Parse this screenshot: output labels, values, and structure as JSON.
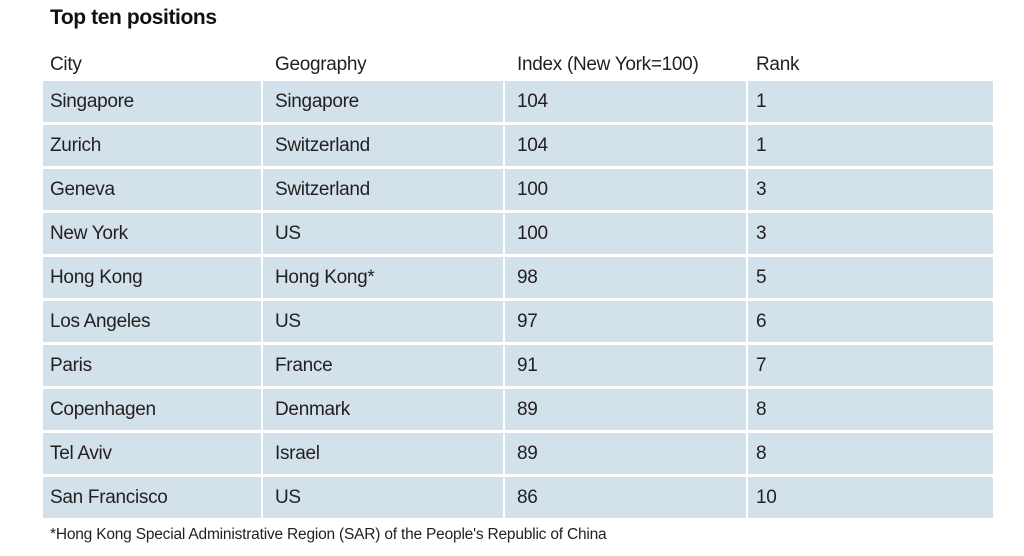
{
  "title": "Top ten positions",
  "table": {
    "columns": [
      "City",
      "Geography",
      "Index (New York=100)",
      "Rank"
    ],
    "rows": [
      {
        "city": "Singapore",
        "geography": "Singapore",
        "index": "104",
        "rank": "1"
      },
      {
        "city": "Zurich",
        "geography": "Switzerland",
        "index": "104",
        "rank": "1"
      },
      {
        "city": "Geneva",
        "geography": "Switzerland",
        "index": "100",
        "rank": "3"
      },
      {
        "city": "New York",
        "geography": "US",
        "index": "100",
        "rank": "3"
      },
      {
        "city": "Hong Kong",
        "geography": "Hong Kong*",
        "index": "98",
        "rank": "5"
      },
      {
        "city": "Los Angeles",
        "geography": "US",
        "index": "97",
        "rank": "6"
      },
      {
        "city": "Paris",
        "geography": "France",
        "index": "91",
        "rank": "7"
      },
      {
        "city": "Copenhagen",
        "geography": "Denmark",
        "index": "89",
        "rank": "8"
      },
      {
        "city": "Tel Aviv",
        "geography": "Israel",
        "index": "89",
        "rank": "8"
      },
      {
        "city": "San Francisco",
        "geography": "US",
        "index": "86",
        "rank": "10"
      }
    ]
  },
  "footnote": "*Hong Kong Special Administrative Region (SAR) of the People's Republic of China",
  "colors": {
    "row_background": "#d3e1ea",
    "text": "#231f20",
    "page_background": "#ffffff"
  }
}
